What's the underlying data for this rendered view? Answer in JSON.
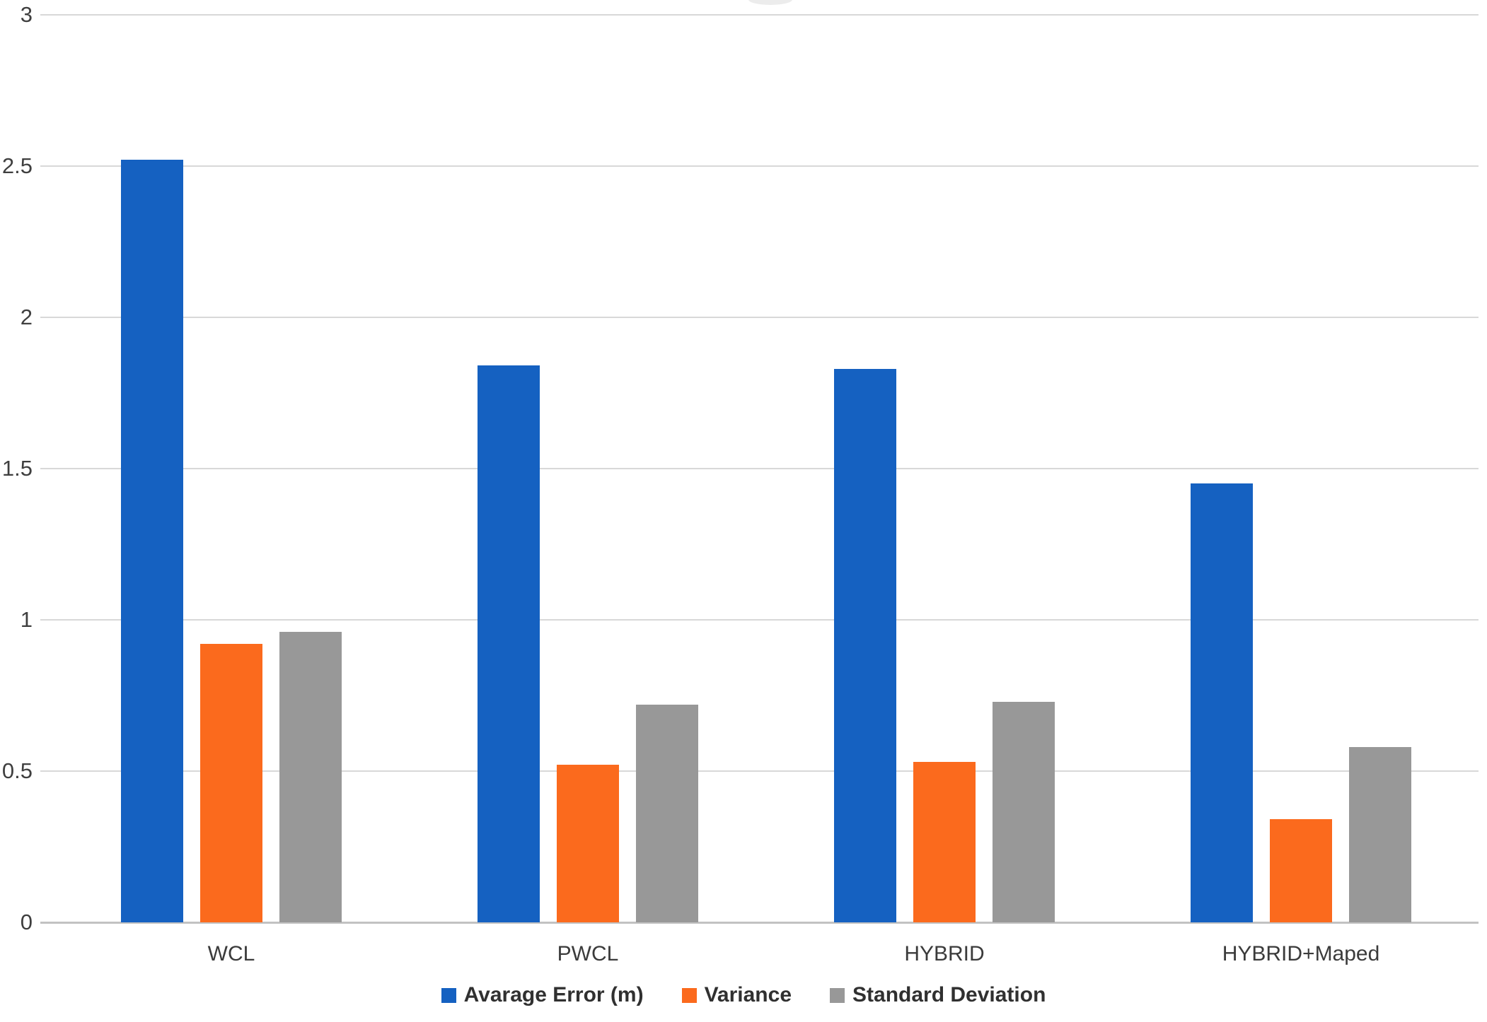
{
  "chart_data": {
    "type": "bar",
    "title": "",
    "xlabel": "",
    "ylabel": "",
    "categories": [
      "WCL",
      "PWCL",
      "HYBRID",
      "HYBRID+Maped"
    ],
    "series": [
      {
        "name": "Avarage Error (m)",
        "color": "#1561c1",
        "values": [
          2.52,
          1.84,
          1.83,
          1.45
        ]
      },
      {
        "name": "Variance",
        "color": "#fb6a1d",
        "values": [
          0.92,
          0.52,
          0.53,
          0.34
        ]
      },
      {
        "name": "Standard Deviation",
        "color": "#989898",
        "values": [
          0.96,
          0.72,
          0.73,
          0.58
        ]
      }
    ],
    "ylim": [
      0,
      3
    ],
    "yticks": [
      0,
      0.5,
      1,
      1.5,
      2,
      2.5,
      3
    ],
    "ytick_labels": [
      "0",
      "0.5",
      "1",
      "1.5",
      "2",
      "2.5",
      "3"
    ],
    "grid": true,
    "legend_position": "bottom-center"
  },
  "colors": {
    "series_blue": "#1561c1",
    "series_orange": "#fb6a1d",
    "series_gray": "#989898",
    "gridline": "#d8d8d8",
    "axis_line": "#c2c2c2",
    "tick_text": "#3f3f3f",
    "legend_text": "#303030",
    "background": "#ffffff"
  }
}
